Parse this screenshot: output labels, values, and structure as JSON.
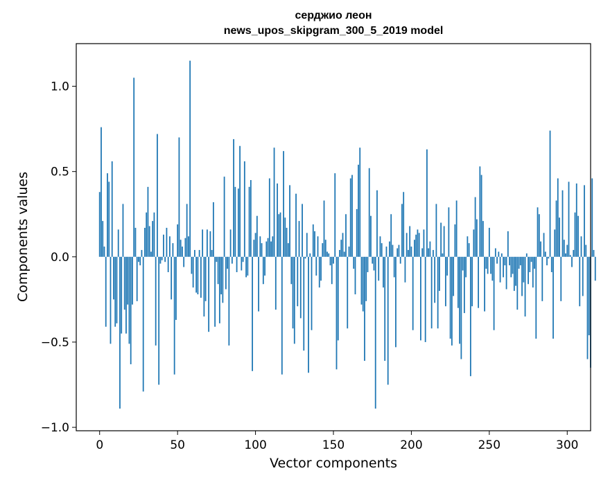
{
  "chart_data": {
    "type": "bar",
    "title": "серджио леон",
    "subtitle": "news_upos_skipgram_300_5_2019 model",
    "xlabel": "Vector components",
    "ylabel": "Components values",
    "xlim": [
      -15,
      315
    ],
    "ylim": [
      -1.02,
      1.25
    ],
    "xticks": [
      0,
      50,
      100,
      150,
      200,
      250,
      300
    ],
    "yticks": [
      -1.0,
      -0.5,
      0.0,
      0.5,
      1.0
    ],
    "xtick_labels": [
      "0",
      "50",
      "100",
      "150",
      "200",
      "250",
      "300"
    ],
    "ytick_labels": [
      "−1.0",
      "−0.5",
      "0.0",
      "0.5",
      "1.0"
    ],
    "bar_color": "#1f77b4",
    "values": [
      0.38,
      0.76,
      0.21,
      0.06,
      -0.41,
      0.49,
      0.44,
      -0.51,
      0.56,
      -0.25,
      -0.41,
      -0.39,
      0.16,
      -0.89,
      -0.45,
      0.31,
      -0.31,
      -0.45,
      -0.28,
      -0.51,
      -0.63,
      -0.28,
      1.05,
      0.17,
      -0.26,
      -0.03,
      -0.05,
      0.04,
      -0.79,
      0.17,
      0.26,
      0.41,
      0.18,
      0.03,
      0.21,
      0.26,
      -0.52,
      0.72,
      -0.75,
      -0.04,
      -0.02,
      0.13,
      -0.03,
      0.17,
      -0.09,
      0.12,
      -0.25,
      0.08,
      -0.69,
      -0.37,
      0.19,
      0.7,
      0.1,
      0.06,
      -0.06,
      0.11,
      0.31,
      0.12,
      1.15,
      -0.1,
      -0.18,
      0.04,
      -0.21,
      -0.22,
      0.04,
      -0.24,
      0.16,
      -0.35,
      -0.26,
      0.16,
      -0.44,
      0.15,
      0.04,
      0.32,
      -0.41,
      -0.03,
      -0.16,
      -0.39,
      -0.22,
      -0.27,
      0.47,
      -0.19,
      -0.07,
      -0.52,
      0.16,
      -0.04,
      0.69,
      0.41,
      -0.09,
      0.4,
      0.65,
      -0.08,
      -0.03,
      0.56,
      -0.12,
      -0.11,
      0.41,
      0.45,
      -0.67,
      0.1,
      0.14,
      0.24,
      -0.32,
      0.12,
      0.08,
      -0.16,
      -0.11,
      0.09,
      0.11,
      0.46,
      0.09,
      0.12,
      0.64,
      -0.31,
      0.43,
      0.25,
      0.26,
      -0.69,
      0.62,
      0.23,
      0.17,
      0.08,
      0.42,
      -0.16,
      -0.42,
      -0.51,
      0.37,
      -0.29,
      0.21,
      -0.36,
      0.31,
      -0.55,
      -0.01,
      0.14,
      -0.68,
      0.02,
      -0.43,
      0.19,
      0.15,
      -0.11,
      0.12,
      -0.18,
      -0.14,
      0.08,
      0.33,
      0.1,
      0.03,
      0.02,
      -0.05,
      -0.16,
      -0.04,
      0.49,
      -0.66,
      -0.49,
      0.04,
      0.1,
      0.14,
      0.03,
      0.25,
      -0.42,
      0.06,
      0.46,
      0.48,
      -0.07,
      -0.22,
      0.28,
      0.54,
      0.64,
      -0.28,
      -0.32,
      -0.61,
      -0.26,
      -0.09,
      0.52,
      0.24,
      -0.04,
      -0.08,
      -0.89,
      0.39,
      -0.14,
      0.12,
      0.08,
      -0.18,
      -0.61,
      0.06,
      -0.75,
      0.09,
      0.25,
      0.07,
      -0.12,
      -0.53,
      0.05,
      0.07,
      -0.04,
      0.31,
      0.38,
      -0.15,
      0.14,
      0.04,
      0.18,
      0.06,
      -0.43,
      0.1,
      0.13,
      0.16,
      0.14,
      -0.49,
      0.05,
      0.16,
      -0.5,
      0.63,
      0.05,
      0.09,
      -0.42,
      0.04,
      -0.27,
      0.31,
      -0.42,
      -0.2,
      0.2,
      0.02,
      0.18,
      -0.29,
      -0.11,
      0.29,
      -0.48,
      -0.52,
      -0.23,
      0.19,
      0.33,
      -0.3,
      -0.51,
      -0.6,
      -0.08,
      -0.33,
      -0.12,
      0.12,
      0.08,
      -0.7,
      -0.29,
      0.16,
      0.35,
      0.22,
      -0.3,
      0.53,
      0.48,
      0.21,
      -0.32,
      -0.07,
      -0.1,
      0.17,
      -0.1,
      -0.14,
      -0.43,
      0.05,
      -0.04,
      0.03,
      -0.15,
      0.02,
      -0.12,
      -0.05,
      -0.19,
      0.15,
      -0.05,
      -0.12,
      -0.1,
      -0.2,
      -0.17,
      -0.31,
      -0.07,
      -0.05,
      -0.23,
      -0.15,
      -0.35,
      0.02,
      -0.16,
      -0.09,
      -0.03,
      -0.18,
      -0.07,
      -0.48,
      0.29,
      0.25,
      0.09,
      -0.26,
      0.14,
      0.03,
      -0.05,
      -0.01,
      0.74,
      -0.09,
      -0.48,
      0.16,
      0.33,
      0.46,
      0.23,
      -0.26,
      0.39,
      0.1,
      0.02,
      0.07,
      0.44,
      0.01,
      -0.06,
      0.04,
      0.26,
      0.43,
      0.24,
      -0.29,
      0.12,
      -0.23,
      0.42,
      0.07,
      -0.6,
      -0.46,
      -0.65,
      0.46,
      0.04,
      -0.14
    ]
  }
}
